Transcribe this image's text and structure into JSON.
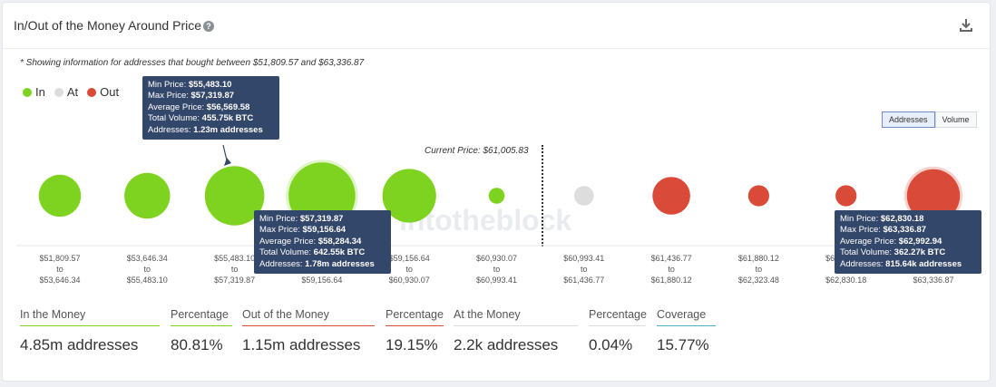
{
  "header": {
    "title": "In/Out of the Money Around Price",
    "help_icon": "question-circle-icon",
    "download_icon": "download-icon"
  },
  "note": "* Showing information for addresses that bought between $51,809.57 and $63,336.87",
  "legend": [
    {
      "label": "In",
      "color": "#7ed321"
    },
    {
      "label": "At",
      "color": "#dddddd"
    },
    {
      "label": "Out",
      "color": "#d94a38"
    }
  ],
  "toggle": {
    "addresses_label": "Addresses",
    "volume_label": "Volume",
    "active": "Addresses"
  },
  "current_price_label": "Current Price: $61,005.83",
  "watermark": "intotheblock",
  "chart_data": {
    "type": "scatter",
    "current_price": 61005.83,
    "buckets": [
      {
        "from": "$51,809.57",
        "to": "$53,646.34",
        "status": "In",
        "relative_size": 0.58
      },
      {
        "from": "$53,646.34",
        "to": "$55,483.10",
        "status": "In",
        "relative_size": 0.63
      },
      {
        "from": "$55,483.10",
        "to": "$57,319.87",
        "status": "In",
        "relative_size": 0.82,
        "addresses_m": 1.23
      },
      {
        "from": "$57,319.87",
        "to": "$59,156.64",
        "status": "In",
        "relative_size": 0.92,
        "addresses_m": 1.78
      },
      {
        "from": "$59,156.64",
        "to": "$60,930.07",
        "status": "In",
        "relative_size": 0.74
      },
      {
        "from": "$60,930.07",
        "to": "$60,993.41",
        "status": "In",
        "relative_size": 0.22
      },
      {
        "from": "$60,993.41",
        "to": "$61,436.77",
        "status": "At",
        "relative_size": 0.27
      },
      {
        "from": "$61,436.77",
        "to": "$61,880.12",
        "status": "Out",
        "relative_size": 0.52
      },
      {
        "from": "$61,880.12",
        "to": "$62,323.48",
        "status": "Out",
        "relative_size": 0.29
      },
      {
        "from": "$62,323.48",
        "to": "$62,830.18",
        "status": "Out",
        "relative_size": 0.29
      },
      {
        "from": "$62,830.18",
        "to": "$63,336.87",
        "status": "Out",
        "relative_size": 0.73,
        "addresses_k": 815.64
      }
    ],
    "tooltips": [
      {
        "bucket": 2,
        "min": "$55,483.10",
        "max": "$57,319.87",
        "avg": "$56,569.58",
        "volume": "455.75k BTC",
        "addresses": "1.23m addresses"
      },
      {
        "bucket": 3,
        "min": "$57,319.87",
        "max": "$59,156.64",
        "avg": "$58,284.34",
        "volume": "642.55k BTC",
        "addresses": "1.78m addresses"
      },
      {
        "bucket": 10,
        "min": "$62,830.18",
        "max": "$63,336.87",
        "avg": "$62,992.94",
        "volume": "362.27k BTC",
        "addresses": "815.64k addresses"
      }
    ],
    "tooltip_labels": {
      "min": "Min Price: ",
      "max": "Max Price: ",
      "avg": "Average Price: ",
      "volume": "Total Volume: ",
      "addresses": "Addresses: "
    },
    "to_word": "to"
  },
  "stats": [
    {
      "label": "In the Money",
      "value": "4.85m addresses",
      "color": "#7ed321"
    },
    {
      "label": "Percentage",
      "value": "80.81%",
      "color": "#7ed321"
    },
    {
      "label": "Out of the Money",
      "value": "1.15m addresses",
      "color": "#d94a38"
    },
    {
      "label": "Percentage",
      "value": "19.15%",
      "color": "#d94a38"
    },
    {
      "label": "At the Money",
      "value": "2.2k addresses",
      "color": "#dddddd"
    },
    {
      "label": "Percentage",
      "value": "0.04%",
      "color": "#dddddd"
    },
    {
      "label": "Coverage",
      "value": "15.77%",
      "color": "#4ab0c1"
    }
  ]
}
